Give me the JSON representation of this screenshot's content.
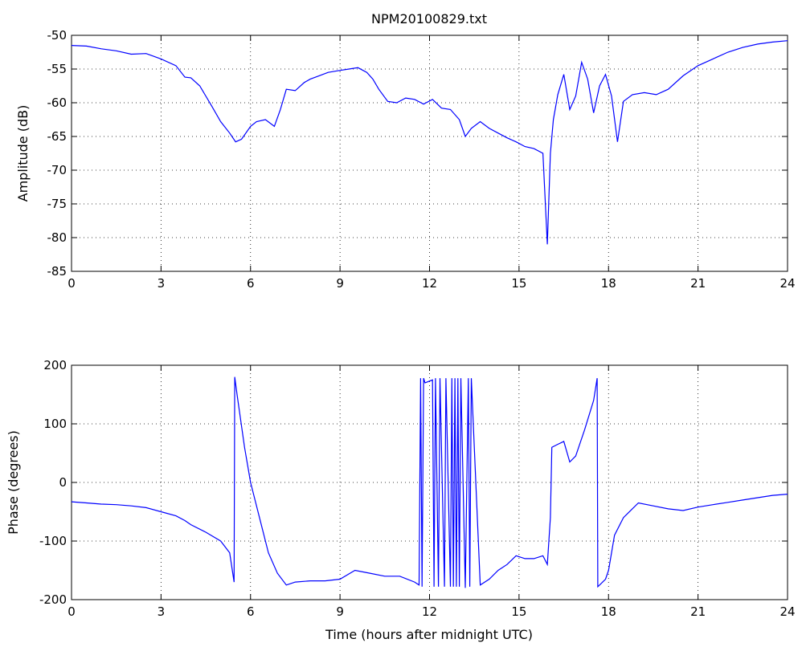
{
  "title": "NPM20100829.txt",
  "colors": {
    "series": "#0000ff",
    "axes": "#000000",
    "grid": "#000000",
    "background": "#ffffff"
  },
  "chart_data": [
    {
      "type": "line",
      "title": "NPM20100829.txt",
      "xlabel": "",
      "ylabel": "Amplitude (dB)",
      "xlim": [
        0,
        24
      ],
      "ylim": [
        -85,
        -50
      ],
      "xticks": [
        0,
        3,
        6,
        9,
        12,
        15,
        18,
        21,
        24
      ],
      "yticks": [
        -85,
        -80,
        -75,
        -70,
        -65,
        -60,
        -55,
        -50
      ],
      "grid": true,
      "series": [
        {
          "x": [
            0,
            0.5,
            1,
            1.5,
            2,
            2.5,
            3,
            3.5,
            3.8,
            4,
            4.3,
            4.7,
            5,
            5.3,
            5.5,
            5.7,
            6,
            6.2,
            6.5,
            6.8,
            7.0,
            7.2,
            7.5,
            7.8,
            8.0,
            8.3,
            8.6,
            9.0,
            9.3,
            9.6,
            9.9,
            10.1,
            10.3,
            10.6,
            10.9,
            11.2,
            11.5,
            11.8,
            12.1,
            12.4,
            12.7,
            13.0,
            13.2,
            13.4,
            13.7,
            14.0,
            14.3,
            14.6,
            14.9,
            15.2,
            15.5,
            15.8,
            15.95,
            16.05,
            16.15,
            16.3,
            16.5,
            16.7,
            16.9,
            17.1,
            17.3,
            17.5,
            17.7,
            17.9,
            18.1,
            18.3,
            18.5,
            18.8,
            19.2,
            19.6,
            20.0,
            20.5,
            21.0,
            21.5,
            22.0,
            22.5,
            23.0,
            23.5,
            24.0
          ],
          "y": [
            -51.5,
            -51.6,
            -52.0,
            -52.3,
            -52.8,
            -52.7,
            -53.5,
            -54.5,
            -56.2,
            -56.3,
            -57.5,
            -60.5,
            -62.8,
            -64.5,
            -65.8,
            -65.4,
            -63.5,
            -62.8,
            -62.5,
            -63.5,
            -61.0,
            -58.0,
            -58.2,
            -57.0,
            -56.5,
            -56.0,
            -55.5,
            -55.2,
            -55.0,
            -54.8,
            -55.5,
            -56.5,
            -58.0,
            -59.8,
            -60.0,
            -59.3,
            -59.5,
            -60.2,
            -59.5,
            -60.8,
            -61.0,
            -62.5,
            -65.0,
            -63.8,
            -62.8,
            -63.8,
            -64.5,
            -65.2,
            -65.8,
            -66.5,
            -66.8,
            -67.5,
            -81.0,
            -67.5,
            -62.5,
            -58.8,
            -55.8,
            -61.0,
            -59.0,
            -54.0,
            -56.5,
            -61.5,
            -57.5,
            -55.8,
            -59.0,
            -65.8,
            -59.8,
            -58.8,
            -58.5,
            -58.8,
            -58.0,
            -56.0,
            -54.5,
            -53.5,
            -52.5,
            -51.8,
            -51.3,
            -51.0,
            -50.8
          ]
        }
      ]
    },
    {
      "type": "line",
      "title": "",
      "xlabel": "Time (hours after midnight UTC)",
      "ylabel": "Phase (degrees)",
      "xlim": [
        0,
        24
      ],
      "ylim": [
        -200,
        200
      ],
      "xticks": [
        0,
        3,
        6,
        9,
        12,
        15,
        18,
        21,
        24
      ],
      "yticks": [
        -200,
        -100,
        0,
        100,
        200
      ],
      "grid": true,
      "series": [
        {
          "x": [
            0,
            0.5,
            1,
            1.5,
            2,
            2.5,
            3,
            3.5,
            3.8,
            4,
            4.5,
            5,
            5.3,
            5.45,
            5.47,
            5.55,
            5.8,
            6.0,
            6.3,
            6.6,
            6.9,
            7.2,
            7.5,
            8.0,
            8.5,
            9.0,
            9.5,
            10.0,
            10.5,
            11.0,
            11.5,
            11.65,
            11.7,
            11.75,
            11.8,
            11.85,
            12.1,
            12.15,
            12.2,
            12.3,
            12.35,
            12.5,
            12.55,
            12.7,
            12.75,
            12.8,
            12.85,
            12.9,
            12.95,
            13.0,
            13.05,
            13.2,
            13.3,
            13.35,
            13.4,
            13.7,
            14.0,
            14.3,
            14.6,
            14.9,
            15.2,
            15.5,
            15.8,
            15.95,
            16.05,
            16.1,
            16.3,
            16.5,
            16.7,
            16.9,
            17.2,
            17.5,
            17.62,
            17.64,
            17.7,
            17.9,
            18.0,
            18.2,
            18.5,
            19.0,
            19.5,
            20.0,
            20.5,
            21.0,
            21.5,
            22.0,
            22.5,
            23.0,
            23.5,
            24.0
          ],
          "y": [
            -33,
            -35,
            -37,
            -38,
            -40,
            -43,
            -50,
            -57,
            -65,
            -72,
            -85,
            -100,
            -120,
            -170,
            180,
            150,
            60,
            0,
            -60,
            -120,
            -155,
            -175,
            -170,
            -168,
            -168,
            -165,
            -150,
            -155,
            -160,
            -160,
            -170,
            -175,
            178,
            -178,
            178,
            170,
            175,
            -178,
            178,
            -178,
            178,
            -178,
            178,
            -178,
            178,
            -178,
            178,
            -178,
            178,
            -178,
            178,
            -180,
            178,
            -178,
            178,
            -175,
            -165,
            -150,
            -140,
            -125,
            -130,
            -130,
            -125,
            -140,
            -60,
            60,
            65,
            70,
            35,
            45,
            90,
            140,
            178,
            -178,
            -175,
            -165,
            -150,
            -90,
            -60,
            -35,
            -40,
            -45,
            -48,
            -42,
            -38,
            -34,
            -30,
            -26,
            -22,
            -20
          ]
        }
      ]
    }
  ]
}
